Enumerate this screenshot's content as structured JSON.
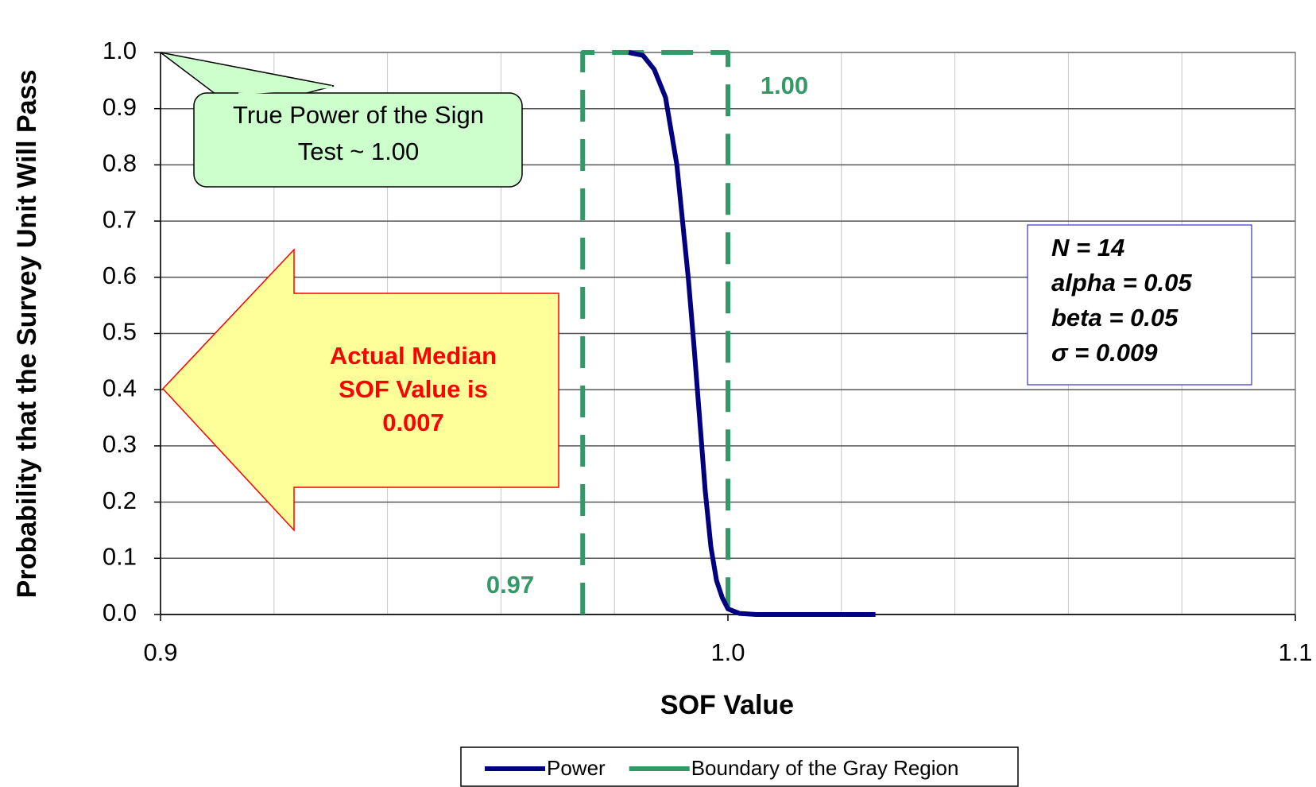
{
  "chart_data": {
    "type": "line",
    "xlabel": "SOF Value",
    "ylabel": "Probability that the Survey Unit Will Pass",
    "xlim": [
      0.9,
      1.1
    ],
    "xticks": [
      0.9,
      {
        "value": 1,
        "label": "1.0"
      },
      1.1
    ],
    "xgrid": [
      0.92,
      0.94,
      0.96,
      0.98,
      1.02,
      1.04,
      1.06,
      1.08
    ],
    "ylim": [
      0,
      1
    ],
    "yticks": [
      {
        "value": 0,
        "label": "0.0"
      },
      0.1,
      0.2,
      0.3,
      0.4,
      0.5,
      0.6,
      0.7,
      0.8,
      0.9,
      {
        "value": 1,
        "label": "1.0"
      }
    ],
    "grid": true,
    "legend": "bottom",
    "series": [
      {
        "name": "Power",
        "color": "#000080",
        "dashed": false,
        "x": [
          0.9825,
          0.985,
          0.987,
          0.989,
          0.991,
          0.993,
          0.994,
          0.995,
          0.996,
          0.997,
          0.998,
          0.999,
          1.0,
          1.002,
          1.005,
          1.026
        ],
        "values": [
          1.0,
          0.995,
          0.97,
          0.92,
          0.8,
          0.6,
          0.48,
          0.35,
          0.22,
          0.12,
          0.06,
          0.03,
          0.01,
          0.002,
          0,
          0
        ]
      },
      {
        "name": "Boundary of the Gray Region",
        "color": "#339966",
        "dashed": true,
        "x": [
          0.9744,
          0.9744,
          1.0,
          1.0
        ],
        "values": [
          0,
          1,
          1,
          0
        ]
      }
    ],
    "annotations": {
      "left_boundary": "0.97",
      "right_boundary": "1.00",
      "callout": [
        "True Power of the Sign",
        "Test ~ 1.00"
      ],
      "arrow": [
        "Actual Median",
        "SOF Value is",
        "0.007"
      ],
      "stats": [
        "N =  14",
        "alpha = 0.05",
        "beta = 0.05",
        "σ = 0.009"
      ]
    }
  }
}
